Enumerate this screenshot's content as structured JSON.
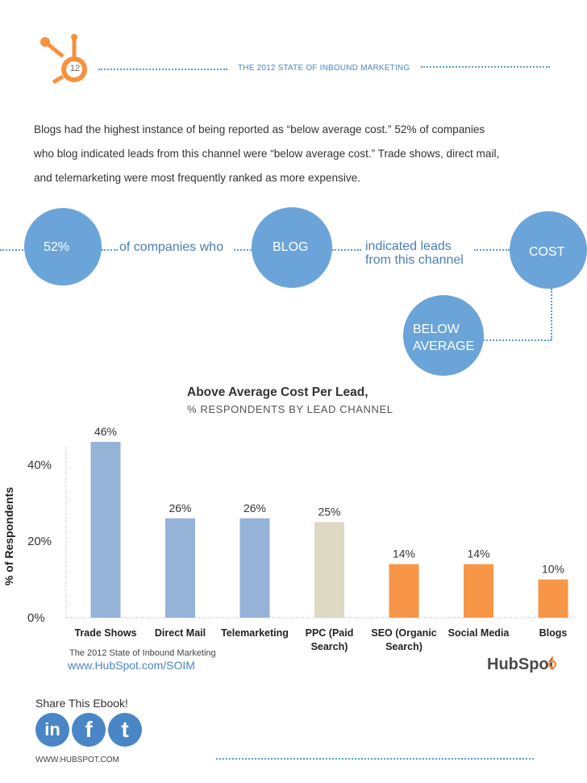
{
  "header": {
    "page_number": "12",
    "report_title": "THE 2012 STATE OF INBOUND MARKETING"
  },
  "intro": {
    "lines": [
      "Blogs had the highest instance of being reported as “below average cost.” 52% of companies",
      "who blog indicated leads from this channel were “below average cost.” Trade shows, direct mail,",
      "and telemarketing were most frequently ranked as more expensive."
    ]
  },
  "flow": {
    "percent": "52%",
    "of_companies": "of companies who",
    "blog": "BLOG",
    "indicated_line1": "indicated leads",
    "indicated_line2": "from this channel",
    "cost": "COST",
    "below_line1": "BELOW",
    "below_line2": "AVERAGE"
  },
  "colors": {
    "accent_blue": "#6ba4d8",
    "hubspot_orange": "#f7913d",
    "bar_blue": "#95b3d7",
    "bar_beige": "#ddd9c4",
    "bar_orange": "#f79646"
  },
  "chart_data": {
    "type": "bar",
    "title": "Above Average Cost Per Lead,",
    "subtitle": "% RESPONDENTS BY LEAD CHANNEL",
    "xlabel": "",
    "ylabel": "% of Respondents",
    "ylim": [
      0,
      50
    ],
    "yticks": [
      0,
      20,
      40
    ],
    "ytick_labels": [
      "0%",
      "20%",
      "40%"
    ],
    "grid": false,
    "categories": [
      [
        "Trade Shows"
      ],
      [
        "Direct Mail"
      ],
      [
        "Telemarketing"
      ],
      [
        "PPC (Paid",
        "Search)"
      ],
      [
        "SEO (Organic",
        "Search)"
      ],
      [
        "Social Media"
      ],
      [
        "Blogs"
      ]
    ],
    "values": [
      46,
      26,
      26,
      25,
      14,
      14,
      10
    ],
    "value_labels": [
      "46%",
      "26%",
      "26%",
      "25%",
      "14%",
      "14%",
      "10%"
    ],
    "bar_colors": [
      "#95b3d7",
      "#95b3d7",
      "#95b3d7",
      "#ddd9c4",
      "#f79646",
      "#f79646",
      "#f79646"
    ]
  },
  "source": {
    "line1": "The 2012 State of Inbound Marketing",
    "url": "www.HubSpot.com/SOIM",
    "logo_text": "HubSpot"
  },
  "share": {
    "label": "Share This Ebook!",
    "linkedin": "in",
    "facebook": "f",
    "twitter": "t"
  },
  "footer": {
    "site": "WWW.HUBSPOT.COM"
  }
}
